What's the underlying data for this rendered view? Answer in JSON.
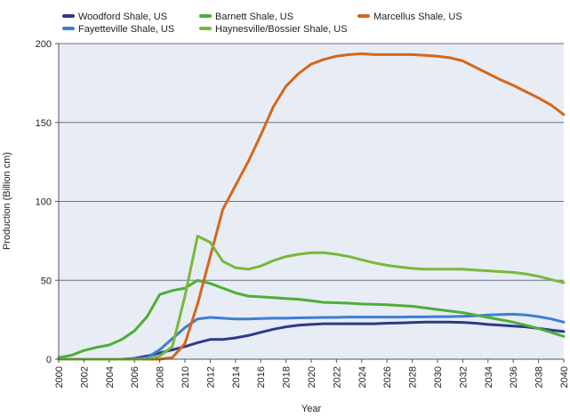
{
  "chart_data": {
    "type": "line",
    "title": "",
    "xlabel": "Year",
    "ylabel": "Production (Billion cm)",
    "xlim": [
      2000,
      2040
    ],
    "ylim": [
      0,
      200
    ],
    "x_ticks": [
      2000,
      2002,
      2004,
      2006,
      2008,
      2010,
      2012,
      2014,
      2016,
      2018,
      2020,
      2022,
      2024,
      2026,
      2028,
      2030,
      2032,
      2034,
      2036,
      2038,
      2040
    ],
    "y_ticks": [
      0,
      50,
      100,
      150,
      200
    ],
    "grid": "horizontal",
    "legend_position": "top",
    "x": [
      2000,
      2001,
      2002,
      2003,
      2004,
      2005,
      2006,
      2007,
      2008,
      2009,
      2010,
      2011,
      2012,
      2013,
      2014,
      2015,
      2016,
      2017,
      2018,
      2019,
      2020,
      2021,
      2022,
      2023,
      2024,
      2025,
      2026,
      2027,
      2028,
      2029,
      2030,
      2031,
      2032,
      2033,
      2034,
      2035,
      2036,
      2037,
      2038,
      2039,
      2040
    ],
    "series": [
      {
        "name": "Woodford Shale, US",
        "color": "#2e3a87",
        "values": [
          0,
          0,
          0,
          0,
          0,
          0,
          0.5,
          2,
          4,
          6,
          8,
          10.5,
          12.5,
          12.5,
          13.5,
          15,
          17,
          19,
          20.5,
          21.5,
          22,
          22.5,
          22.5,
          22.5,
          22.5,
          22.5,
          22.8,
          23,
          23.2,
          23.5,
          23.5,
          23.5,
          23.3,
          22.8,
          22,
          21.5,
          21,
          20.5,
          19.5,
          18.5,
          17.5
        ]
      },
      {
        "name": "Fayetteville Shale, US",
        "color": "#3d7fd1",
        "values": [
          0,
          0,
          0,
          0,
          0,
          0,
          0,
          1,
          6,
          13,
          20,
          25.5,
          26.5,
          26,
          25.5,
          25.5,
          25.8,
          26,
          26,
          26.2,
          26.3,
          26.5,
          26.5,
          26.7,
          26.7,
          26.7,
          26.7,
          26.7,
          26.8,
          26.8,
          27,
          27,
          27.2,
          27.5,
          28,
          28.3,
          28.5,
          28,
          27,
          25.5,
          23.5
        ]
      },
      {
        "name": "Barnett Shale, US",
        "color": "#4caf35",
        "values": [
          1,
          2.5,
          5.5,
          7.5,
          9,
          12.5,
          18,
          27,
          41,
          43.5,
          45,
          50,
          48,
          45,
          42,
          40,
          39.5,
          39,
          38.5,
          38,
          37,
          36,
          35.8,
          35.5,
          35,
          34.8,
          34.5,
          34,
          33.5,
          32.5,
          31.5,
          30.5,
          29.5,
          28,
          26.5,
          25,
          23.5,
          21.5,
          19.5,
          17,
          14.5
        ]
      },
      {
        "name": "Marcellus Shale, US",
        "color": "#d4671a",
        "values": [
          0,
          0,
          0,
          0,
          0,
          0,
          0,
          0,
          0,
          1,
          10,
          35,
          65,
          95,
          110,
          125,
          142,
          160,
          173,
          181,
          187,
          190,
          192,
          193,
          193.5,
          193,
          193,
          193,
          193,
          192.5,
          192,
          191,
          189,
          185,
          181,
          177,
          173.5,
          169.5,
          165.5,
          161,
          155
        ]
      },
      {
        "name": "Haynesville/Bossier Shale, US",
        "color": "#7ab83a",
        "values": [
          0,
          0,
          0,
          0,
          0,
          0,
          0,
          0,
          2,
          8,
          40,
          78,
          74,
          62,
          58,
          57,
          59,
          62.5,
          65,
          66.5,
          67.5,
          67.5,
          66.5,
          65,
          63,
          61,
          59.5,
          58.5,
          57.5,
          57,
          57,
          57,
          57,
          56.5,
          56,
          55.5,
          55,
          54,
          52.5,
          50.5,
          48.5
        ]
      }
    ]
  }
}
